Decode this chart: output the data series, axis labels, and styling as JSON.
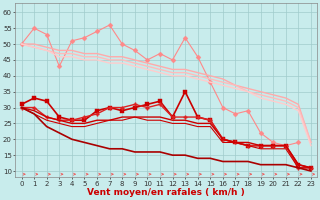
{
  "background_color": "#c8ecec",
  "grid_color": "#a0cccc",
  "x_values": [
    0,
    1,
    2,
    3,
    4,
    5,
    6,
    7,
    8,
    9,
    10,
    11,
    12,
    13,
    14,
    15,
    16,
    17,
    18,
    19,
    20,
    21,
    22,
    23
  ],
  "xlabel": "Vent moyen/en rafales ( km/h )",
  "yticks": [
    10,
    15,
    20,
    25,
    30,
    35,
    40,
    45,
    50,
    55,
    60
  ],
  "xticks": [
    0,
    1,
    2,
    3,
    4,
    5,
    6,
    7,
    8,
    9,
    10,
    11,
    12,
    13,
    14,
    15,
    16,
    17,
    18,
    19,
    20,
    21,
    22,
    23
  ],
  "xlim": [
    -0.5,
    23.5
  ],
  "ylim": [
    8,
    63
  ],
  "lines": [
    {
      "y": [
        50,
        55,
        53,
        43,
        51,
        52,
        54,
        56,
        50,
        48,
        45,
        47,
        45,
        52,
        46,
        38,
        30,
        28,
        29,
        22,
        19,
        18,
        19,
        null
      ],
      "color": "#ff8888",
      "marker": "D",
      "lw": 0.8,
      "ms": 2.5
    },
    {
      "y": [
        50,
        50,
        49,
        48,
        48,
        47,
        47,
        46,
        46,
        45,
        44,
        43,
        42,
        42,
        41,
        40,
        39,
        37,
        36,
        35,
        34,
        33,
        31,
        19
      ],
      "color": "#ffaaaa",
      "marker": null,
      "lw": 1.0,
      "ms": 0
    },
    {
      "y": [
        50,
        49,
        48,
        47,
        47,
        46,
        46,
        45,
        45,
        44,
        43,
        42,
        41,
        41,
        40,
        39,
        38,
        37,
        35,
        34,
        33,
        32,
        30,
        19
      ],
      "color": "#ffbbbb",
      "marker": null,
      "lw": 1.0,
      "ms": 0
    },
    {
      "y": [
        50,
        49,
        48,
        46,
        46,
        45,
        45,
        44,
        44,
        43,
        42,
        41,
        40,
        40,
        39,
        38,
        37,
        36,
        35,
        33,
        32,
        31,
        29,
        18
      ],
      "color": "#ffcccc",
      "marker": null,
      "lw": 1.0,
      "ms": 0
    },
    {
      "y": [
        31,
        33,
        32,
        27,
        26,
        26,
        29,
        30,
        29,
        30,
        31,
        32,
        27,
        35,
        27,
        26,
        20,
        19,
        18,
        18,
        18,
        18,
        12,
        11
      ],
      "color": "#cc0000",
      "marker": "s",
      "lw": 1.2,
      "ms": 2.5
    },
    {
      "y": [
        30,
        30,
        27,
        26,
        26,
        27,
        28,
        30,
        30,
        31,
        30,
        31,
        27,
        27,
        27,
        26,
        20,
        19,
        18,
        18,
        18,
        18,
        11,
        11
      ],
      "color": "#dd2222",
      "marker": "P",
      "lw": 1.0,
      "ms": 2.5
    },
    {
      "y": [
        30,
        29,
        27,
        26,
        25,
        25,
        26,
        26,
        27,
        27,
        27,
        27,
        26,
        26,
        25,
        25,
        20,
        19,
        19,
        18,
        18,
        18,
        12,
        11
      ],
      "color": "#cc0000",
      "marker": null,
      "lw": 1.0,
      "ms": 0
    },
    {
      "y": [
        30,
        28,
        26,
        25,
        24,
        24,
        25,
        26,
        26,
        27,
        26,
        26,
        25,
        25,
        24,
        24,
        19,
        19,
        18,
        17,
        17,
        17,
        11,
        11
      ],
      "color": "#cc0000",
      "marker": null,
      "lw": 0.8,
      "ms": 0
    },
    {
      "y": [
        30,
        28,
        24,
        22,
        20,
        19,
        18,
        17,
        17,
        16,
        16,
        16,
        15,
        15,
        14,
        14,
        13,
        13,
        13,
        12,
        12,
        12,
        11,
        10
      ],
      "color": "#aa0000",
      "marker": null,
      "lw": 1.2,
      "ms": 0
    }
  ],
  "axis_label_fontsize": 6.5,
  "tick_fontsize": 5,
  "ylabel_color": "#cc0000"
}
